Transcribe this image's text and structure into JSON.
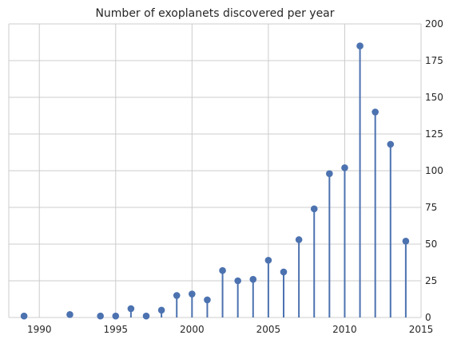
{
  "chart_data": {
    "type": "stem",
    "title": "Number of exoplanets discovered per year",
    "xlabel": "",
    "ylabel": "",
    "xlim": [
      1988,
      2015
    ],
    "ylim": [
      0,
      200
    ],
    "x_ticks": [
      1990,
      1995,
      2000,
      2005,
      2010,
      2015
    ],
    "y_ticks": [
      0,
      25,
      50,
      75,
      100,
      125,
      150,
      175,
      200
    ],
    "y_axis_side": "right",
    "grid": true,
    "colors": {
      "marker": "#4c72b0",
      "stem": "#4c72b0",
      "grid": "#cccccc",
      "text": "#262626"
    },
    "points": [
      {
        "x": 1989,
        "y": 1
      },
      {
        "x": 1992,
        "y": 2
      },
      {
        "x": 1994,
        "y": 1
      },
      {
        "x": 1995,
        "y": 1
      },
      {
        "x": 1996,
        "y": 6
      },
      {
        "x": 1997,
        "y": 1
      },
      {
        "x": 1998,
        "y": 5
      },
      {
        "x": 1999,
        "y": 15
      },
      {
        "x": 2000,
        "y": 16
      },
      {
        "x": 2001,
        "y": 12
      },
      {
        "x": 2002,
        "y": 32
      },
      {
        "x": 2003,
        "y": 25
      },
      {
        "x": 2004,
        "y": 26
      },
      {
        "x": 2005,
        "y": 39
      },
      {
        "x": 2006,
        "y": 31
      },
      {
        "x": 2007,
        "y": 53
      },
      {
        "x": 2008,
        "y": 74
      },
      {
        "x": 2009,
        "y": 98
      },
      {
        "x": 2010,
        "y": 102
      },
      {
        "x": 2011,
        "y": 185
      },
      {
        "x": 2012,
        "y": 140
      },
      {
        "x": 2013,
        "y": 118
      },
      {
        "x": 2014,
        "y": 52
      }
    ]
  }
}
